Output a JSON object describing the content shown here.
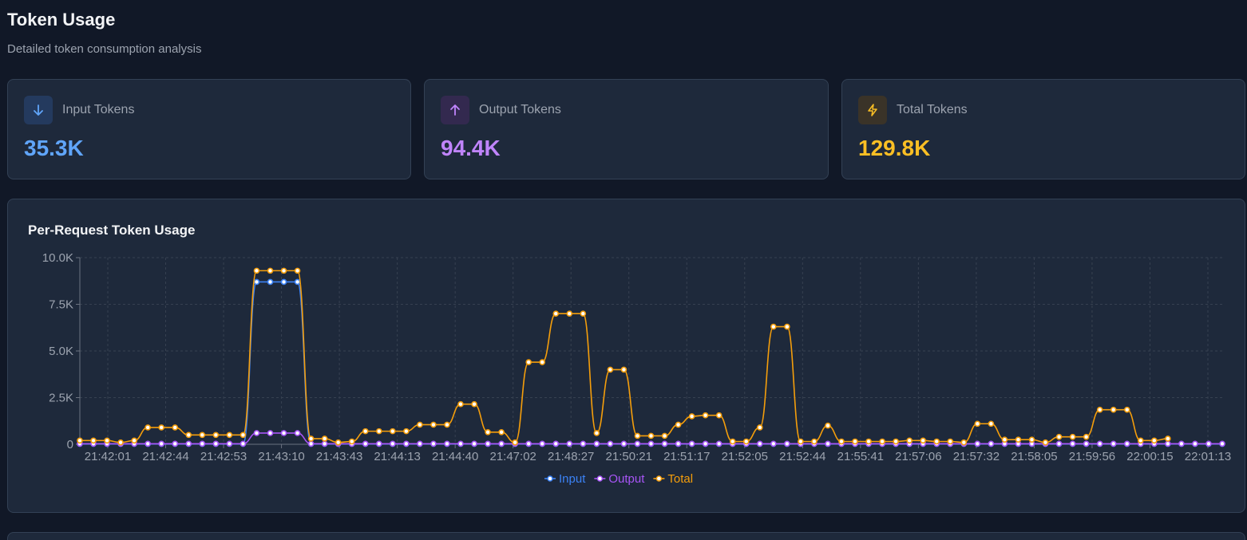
{
  "header": {
    "title": "Token Usage",
    "subtitle": "Detailed token consumption analysis"
  },
  "cards": [
    {
      "label": "Input Tokens",
      "value": "35.3K",
      "icon": "arrow-down-icon",
      "color": "#60a5fa"
    },
    {
      "label": "Output Tokens",
      "value": "94.4K",
      "icon": "arrow-up-icon",
      "color": "#c084fc"
    },
    {
      "label": "Total Tokens",
      "value": "129.8K",
      "icon": "lightning-icon",
      "color": "#fbbf24"
    }
  ],
  "chart_data": {
    "type": "line",
    "title": "Per-Request Token Usage",
    "ylim": [
      0,
      10000
    ],
    "yticks": [
      "0",
      "2.5K",
      "5.0K",
      "7.5K",
      "10.0K"
    ],
    "xtick_labels": [
      "21:42:01",
      "21:42:44",
      "21:42:53",
      "21:43:10",
      "21:43:43",
      "21:44:13",
      "21:44:40",
      "21:47:02",
      "21:48:27",
      "21:50:21",
      "21:51:17",
      "21:52:05",
      "21:52:44",
      "21:55:41",
      "21:57:06",
      "21:57:32",
      "21:58:05",
      "21:59:56",
      "22:00:15",
      "22:01:13"
    ],
    "grid": true,
    "legend": "bottom",
    "series": [
      {
        "name": "Input",
        "color": "#3b82f6",
        "values": [
          20,
          20,
          20,
          20,
          20,
          20,
          20,
          20,
          20,
          20,
          20,
          20,
          20,
          8700,
          8700,
          8700,
          8700,
          20,
          20,
          20,
          20,
          20,
          20,
          20,
          20,
          20,
          20,
          20,
          20,
          20,
          20,
          20,
          20,
          20,
          20,
          20,
          20,
          20,
          20,
          20,
          20,
          20,
          20,
          20,
          20,
          20,
          20,
          20,
          20,
          20,
          20,
          20,
          20,
          20,
          20,
          20,
          20,
          20,
          20,
          20,
          20,
          20,
          20,
          20,
          20,
          20,
          20,
          20,
          20,
          20,
          20,
          20,
          20,
          20,
          20,
          20,
          20,
          20,
          20,
          20,
          20,
          20,
          20,
          20,
          20
        ]
      },
      {
        "name": "Output",
        "color": "#a855f7",
        "values": [
          30,
          30,
          30,
          30,
          30,
          30,
          30,
          30,
          30,
          30,
          30,
          30,
          30,
          600,
          600,
          600,
          600,
          30,
          30,
          30,
          30,
          30,
          30,
          30,
          30,
          30,
          30,
          30,
          30,
          30,
          30,
          30,
          30,
          30,
          30,
          30,
          30,
          30,
          30,
          30,
          30,
          30,
          30,
          30,
          30,
          30,
          30,
          30,
          30,
          30,
          30,
          30,
          30,
          30,
          30,
          30,
          30,
          30,
          30,
          30,
          30,
          30,
          30,
          30,
          30,
          30,
          30,
          30,
          30,
          30,
          30,
          30,
          30,
          30,
          30,
          30,
          30,
          30,
          30,
          30,
          30,
          30,
          30,
          30,
          30
        ]
      },
      {
        "name": "Total",
        "color": "#f59e0b",
        "values": [
          200,
          200,
          200,
          100,
          200,
          900,
          900,
          900,
          500,
          500,
          500,
          500,
          500,
          9300,
          9300,
          9300,
          9300,
          300,
          300,
          100,
          150,
          700,
          700,
          700,
          700,
          1050,
          1050,
          1050,
          2150,
          2150,
          650,
          650,
          100,
          4400,
          4400,
          7000,
          7000,
          7000,
          600,
          4000,
          4000,
          450,
          450,
          450,
          1050,
          1500,
          1550,
          1550,
          150,
          150,
          900,
          6300,
          6300,
          150,
          150,
          1000,
          150,
          150,
          150,
          150,
          150,
          200,
          200,
          150,
          150,
          100,
          1100,
          1100,
          250,
          250,
          250,
          100,
          400,
          400,
          400,
          1850,
          1850,
          1850,
          200,
          200,
          300
        ]
      }
    ]
  }
}
